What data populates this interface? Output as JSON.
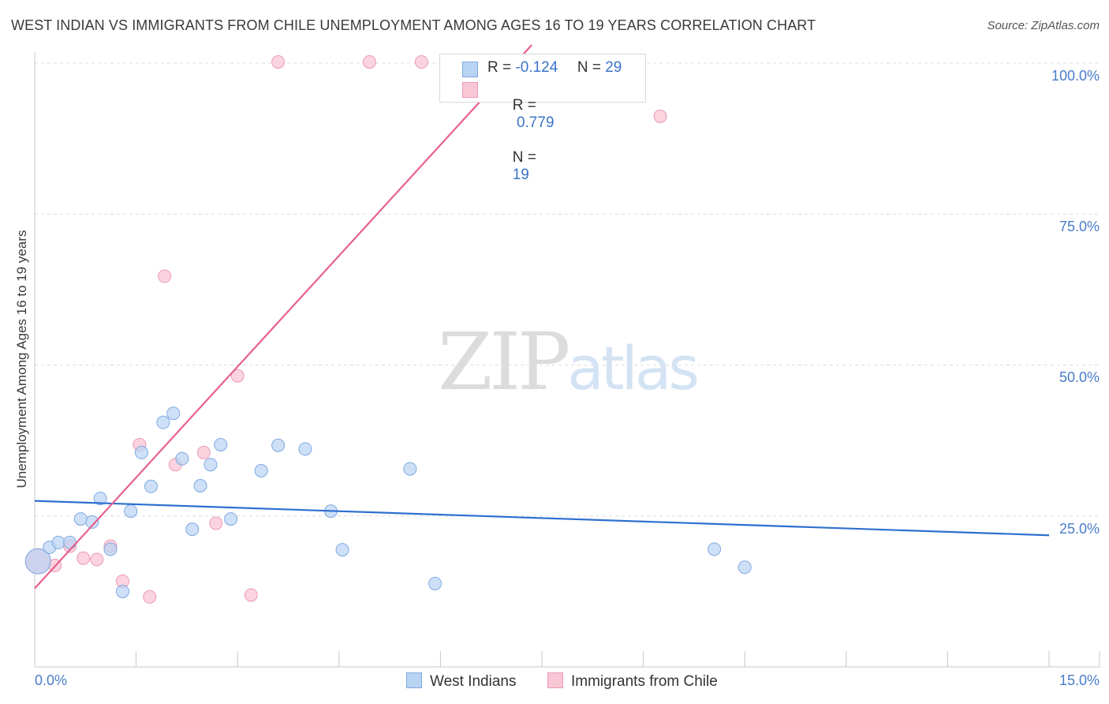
{
  "title": "WEST INDIAN VS IMMIGRANTS FROM CHILE UNEMPLOYMENT AMONG AGES 16 TO 19 YEARS CORRELATION CHART",
  "source": "Source: ZipAtlas.com",
  "watermark": {
    "zip": "ZIP",
    "atlas": "atlas"
  },
  "legend_box": {
    "rows": [
      {
        "r_label": "R =",
        "r_value": "-0.124",
        "n_label": "N =",
        "n_value": "29"
      },
      {
        "r_label": "R =",
        "r_value": " 0.779",
        "n_label": "N =",
        "n_value": "19"
      }
    ]
  },
  "colors": {
    "west_indians_fill": "#b9d3f3",
    "west_indians_stroke": "#7ea9e0",
    "west_indians_line": "#2e6fd0",
    "chile_fill": "#f9c6d6",
    "chile_stroke": "#eb9ab4",
    "chile_line": "#e8608e",
    "grid": "#dddddd",
    "tick_label": "#4a7cc9"
  },
  "chart_data": {
    "type": "scatter",
    "title": "WEST INDIAN VS IMMIGRANTS FROM CHILE UNEMPLOYMENT AMONG AGES 16 TO 19 YEARS CORRELATION CHART",
    "xlabel": "",
    "ylabel": "Unemployment Among Ages 16 to 19 years",
    "xlim": [
      0,
      15
    ],
    "ylim": [
      0,
      102.5
    ],
    "x_tick_labels": [
      "0.0%",
      "15.0%"
    ],
    "y_ticks": [
      25,
      50,
      75,
      100
    ],
    "y_tick_labels": [
      "25.0%",
      "50.0%",
      "75.0%",
      "100.0%"
    ],
    "grid": true,
    "legend_position": "bottom",
    "series": [
      {
        "name": "West Indians",
        "r": -0.124,
        "n": 29,
        "trend": {
          "x": [
            0,
            15
          ],
          "y": [
            27.5,
            21.8
          ]
        },
        "points": [
          {
            "x": 0.05,
            "y": 17.5,
            "big": true
          },
          {
            "x": 0.22,
            "y": 19.8
          },
          {
            "x": 0.35,
            "y": 20.6
          },
          {
            "x": 0.52,
            "y": 20.6
          },
          {
            "x": 0.68,
            "y": 24.5
          },
          {
            "x": 0.85,
            "y": 24.0
          },
          {
            "x": 0.97,
            "y": 27.9
          },
          {
            "x": 1.12,
            "y": 19.5
          },
          {
            "x": 1.3,
            "y": 12.5
          },
          {
            "x": 1.42,
            "y": 25.8
          },
          {
            "x": 1.58,
            "y": 35.5
          },
          {
            "x": 1.72,
            "y": 29.9
          },
          {
            "x": 1.9,
            "y": 40.5
          },
          {
            "x": 2.05,
            "y": 42.0
          },
          {
            "x": 2.18,
            "y": 34.5
          },
          {
            "x": 2.33,
            "y": 22.8
          },
          {
            "x": 2.45,
            "y": 30.0
          },
          {
            "x": 2.6,
            "y": 33.5
          },
          {
            "x": 2.75,
            "y": 36.8
          },
          {
            "x": 2.9,
            "y": 24.5
          },
          {
            "x": 3.35,
            "y": 32.5
          },
          {
            "x": 3.6,
            "y": 36.7
          },
          {
            "x": 4.0,
            "y": 36.1
          },
          {
            "x": 4.38,
            "y": 25.8
          },
          {
            "x": 4.55,
            "y": 19.4
          },
          {
            "x": 5.55,
            "y": 32.8
          },
          {
            "x": 5.92,
            "y": 13.8
          },
          {
            "x": 10.05,
            "y": 19.5
          },
          {
            "x": 10.5,
            "y": 16.5
          }
        ]
      },
      {
        "name": "Immigrants from Chile",
        "r": 0.779,
        "n": 19,
        "trend": {
          "x": [
            0,
            7.35
          ],
          "y": [
            13.0,
            103.0
          ]
        },
        "points": [
          {
            "x": 0.05,
            "y": 17.5,
            "big": true
          },
          {
            "x": 0.3,
            "y": 16.8
          },
          {
            "x": 0.52,
            "y": 20.0
          },
          {
            "x": 0.72,
            "y": 18.0
          },
          {
            "x": 0.92,
            "y": 17.8
          },
          {
            "x": 1.12,
            "y": 20.0
          },
          {
            "x": 1.3,
            "y": 14.2
          },
          {
            "x": 1.55,
            "y": 36.8
          },
          {
            "x": 1.7,
            "y": 11.6
          },
          {
            "x": 1.92,
            "y": 64.7
          },
          {
            "x": 2.08,
            "y": 33.5
          },
          {
            "x": 2.5,
            "y": 35.5
          },
          {
            "x": 2.68,
            "y": 23.8
          },
          {
            "x": 3.0,
            "y": 48.2
          },
          {
            "x": 3.2,
            "y": 11.9
          },
          {
            "x": 3.6,
            "y": 100.2
          },
          {
            "x": 4.95,
            "y": 100.2
          },
          {
            "x": 5.72,
            "y": 100.2
          },
          {
            "x": 9.25,
            "y": 91.2
          }
        ]
      }
    ]
  }
}
